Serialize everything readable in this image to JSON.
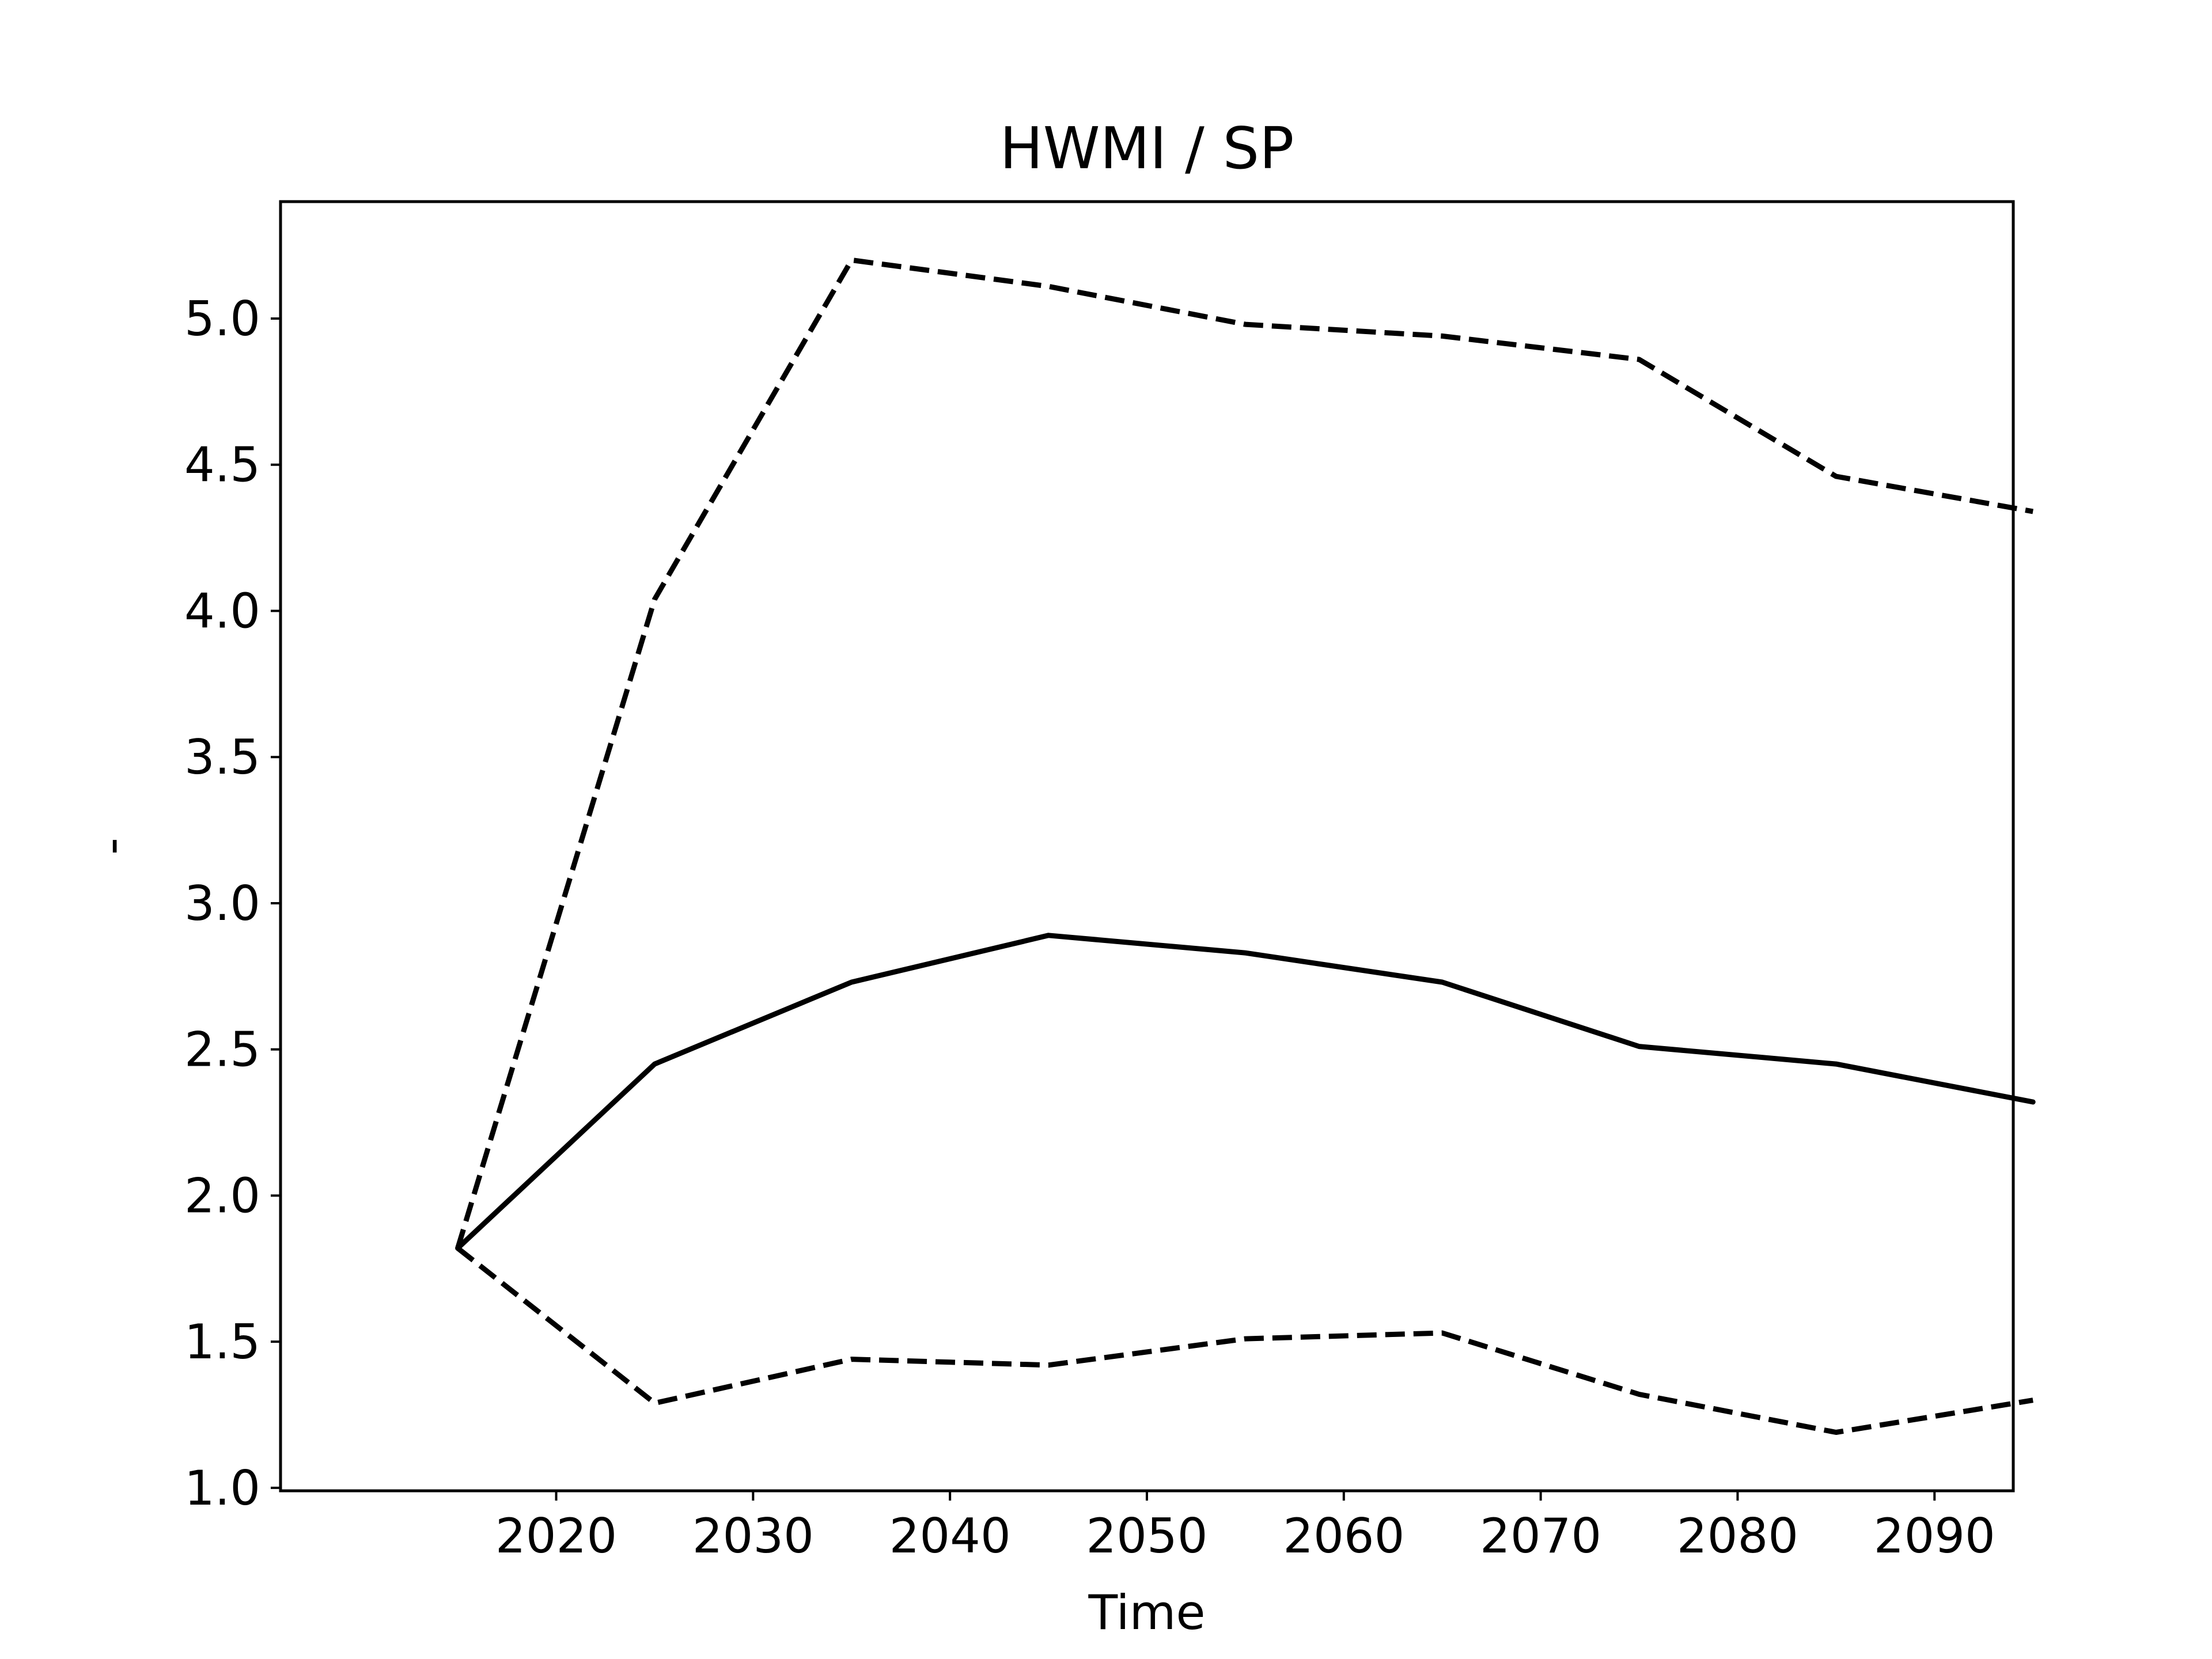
{
  "chart_data": {
    "type": "line",
    "title": "HWMI / SP",
    "xlabel": "Time",
    "ylabel": "-",
    "x": [
      2015,
      2025,
      2035,
      2045,
      2055,
      2065,
      2075,
      2085,
      2095
    ],
    "series": [
      {
        "role": "median",
        "style": "solid",
        "values": [
          1.82,
          2.45,
          2.73,
          2.89,
          2.83,
          2.73,
          2.51,
          2.45,
          2.32
        ]
      },
      {
        "role": "upper",
        "style": "dashed",
        "values": [
          1.82,
          4.04,
          5.2,
          5.11,
          4.98,
          4.94,
          4.86,
          4.46,
          4.34
        ]
      },
      {
        "role": "lower",
        "style": "dashed",
        "values": [
          1.82,
          1.29,
          1.44,
          1.42,
          1.51,
          1.53,
          1.32,
          1.19,
          1.3
        ]
      }
    ],
    "xlim": [
      2006,
      2094
    ],
    "ylim": [
      0.99,
      5.4
    ],
    "xticks": [
      2020,
      2030,
      2040,
      2050,
      2060,
      2070,
      2080,
      2090
    ],
    "xtick_labels": [
      "2020",
      "2030",
      "2040",
      "2050",
      "2060",
      "2070",
      "2080",
      "2090"
    ],
    "yticks": [
      1.0,
      1.5,
      2.0,
      2.5,
      3.0,
      3.5,
      4.0,
      4.5,
      5.0
    ],
    "ytick_labels": [
      "1.0",
      "1.5",
      "2.0",
      "2.5",
      "3.0",
      "3.5",
      "4.0",
      "4.5",
      "5.0"
    ],
    "grid": false,
    "colors": {
      "line": "#000000",
      "frame": "#000000",
      "background": "#ffffff"
    }
  }
}
